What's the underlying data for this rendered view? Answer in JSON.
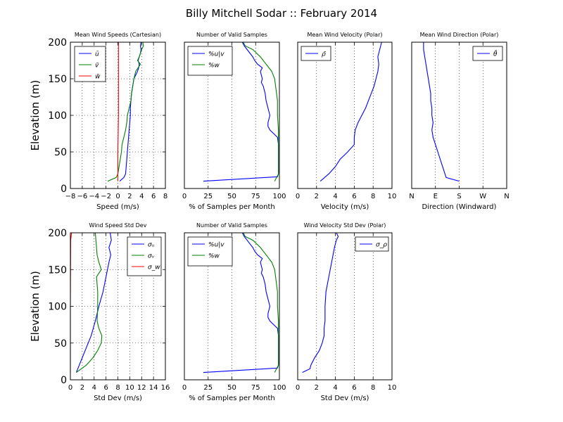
{
  "figure": {
    "title": "Billy Mitchell Sodar :: February 2014"
  },
  "chart_data": [
    {
      "type": "line",
      "title": "Mean Wind Speeds (Cartesian)",
      "xlabel": "Speed (m/s)",
      "ylabel": "Elevation (m)",
      "xlim": [
        -8,
        8
      ],
      "ylim": [
        0,
        200
      ],
      "xticks": [
        -8,
        -6,
        -4,
        -2,
        0,
        2,
        4,
        6,
        8
      ],
      "xtick_labels": [
        "−8",
        "−6",
        "−4",
        "−2",
        "0",
        "2",
        "4",
        "6",
        "8"
      ],
      "yticks": [
        0,
        50,
        100,
        150,
        200
      ],
      "grid": true,
      "legend_position": "top-left",
      "series": [
        {
          "name": "ū",
          "color": "#0000ff",
          "points": [
            [
              0.3,
              10
            ],
            [
              1.0,
              15
            ],
            [
              1.3,
              20
            ],
            [
              1.4,
              30
            ],
            [
              1.5,
              40
            ],
            [
              1.6,
              50
            ],
            [
              1.7,
              60
            ],
            [
              1.8,
              70
            ],
            [
              1.9,
              80
            ],
            [
              2.0,
              90
            ],
            [
              2.1,
              100
            ],
            [
              2.1,
              110
            ],
            [
              2.2,
              120
            ],
            [
              2.3,
              130
            ],
            [
              2.5,
              140
            ],
            [
              2.7,
              150
            ],
            [
              3.0,
              155
            ],
            [
              3.3,
              160
            ],
            [
              3.5,
              165
            ],
            [
              3.6,
              170
            ],
            [
              3.4,
              175
            ],
            [
              3.6,
              180
            ],
            [
              3.8,
              185
            ],
            [
              3.9,
              190
            ],
            [
              3.8,
              195
            ],
            [
              3.9,
              200
            ]
          ]
        },
        {
          "name": "v̄",
          "color": "#008000",
          "points": [
            [
              -1.7,
              10
            ],
            [
              -0.3,
              15
            ],
            [
              0.0,
              20
            ],
            [
              0.2,
              30
            ],
            [
              0.4,
              40
            ],
            [
              0.6,
              50
            ],
            [
              0.7,
              60
            ],
            [
              1.0,
              70
            ],
            [
              1.3,
              80
            ],
            [
              1.5,
              90
            ],
            [
              1.6,
              100
            ],
            [
              1.9,
              110
            ],
            [
              2.2,
              120
            ],
            [
              2.3,
              130
            ],
            [
              2.5,
              140
            ],
            [
              2.7,
              150
            ],
            [
              3.0,
              160
            ],
            [
              3.4,
              165
            ],
            [
              3.8,
              170
            ],
            [
              3.3,
              175
            ],
            [
              3.6,
              180
            ],
            [
              3.8,
              185
            ],
            [
              4.0,
              190
            ],
            [
              4.3,
              195
            ],
            [
              4.2,
              200
            ]
          ]
        },
        {
          "name": "w̄",
          "color": "#ff0000",
          "points": [
            [
              0.0,
              10
            ],
            [
              0.0,
              50
            ],
            [
              0.1,
              100
            ],
            [
              0.1,
              150
            ],
            [
              0.1,
              200
            ]
          ]
        }
      ]
    },
    {
      "type": "line",
      "title": "Number of Valid Samples",
      "xlabel": "% of Samples per Month",
      "ylabel": "",
      "xlim": [
        0,
        100
      ],
      "ylim": [
        0,
        200
      ],
      "xticks": [
        0,
        25,
        50,
        75,
        100
      ],
      "yticks": [],
      "grid": true,
      "legend_position": "top-left",
      "series": [
        {
          "name": "%u|v",
          "color": "#0000ff",
          "points": [
            [
              20,
              10
            ],
            [
              98,
              16
            ],
            [
              99,
              20
            ],
            [
              99,
              30
            ],
            [
              99,
              40
            ],
            [
              99,
              50
            ],
            [
              99,
              60
            ],
            [
              98,
              70
            ],
            [
              90,
              80
            ],
            [
              88,
              85
            ],
            [
              88,
              90
            ],
            [
              90,
              100
            ],
            [
              88,
              110
            ],
            [
              86,
              120
            ],
            [
              85,
              130
            ],
            [
              83,
              140
            ],
            [
              81,
              145
            ],
            [
              82,
              150
            ],
            [
              80,
              160
            ],
            [
              82,
              165
            ],
            [
              77,
              170
            ],
            [
              74,
              175
            ],
            [
              72,
              180
            ],
            [
              69,
              185
            ],
            [
              66,
              190
            ],
            [
              63,
              195
            ],
            [
              61,
              200
            ]
          ]
        },
        {
          "name": "%w",
          "color": "#008000",
          "points": [
            [
              95,
              10
            ],
            [
              99,
              20
            ],
            [
              99,
              50
            ],
            [
              99,
              80
            ],
            [
              98,
              100
            ],
            [
              98,
              120
            ],
            [
              96,
              140
            ],
            [
              95,
              150
            ],
            [
              92,
              160
            ],
            [
              86,
              170
            ],
            [
              80,
              180
            ],
            [
              72,
              190
            ],
            [
              64,
              195
            ],
            [
              62,
              200
            ]
          ]
        }
      ]
    },
    {
      "type": "line",
      "title": "Mean Wind Velocity (Polar)",
      "xlabel": "Velocity (m/s)",
      "ylabel": "",
      "xlim": [
        0,
        10
      ],
      "ylim": [
        0,
        200
      ],
      "xticks": [
        0,
        2,
        4,
        6,
        8,
        10
      ],
      "yticks": [],
      "grid": true,
      "legend_position": "top-left",
      "series": [
        {
          "name": "ρ̄",
          "color": "#0000ff",
          "points": [
            [
              2.4,
              10
            ],
            [
              3.3,
              20
            ],
            [
              4.0,
              30
            ],
            [
              4.5,
              40
            ],
            [
              5.3,
              50
            ],
            [
              6.0,
              60
            ],
            [
              6.0,
              70
            ],
            [
              6.1,
              80
            ],
            [
              6.4,
              90
            ],
            [
              6.8,
              100
            ],
            [
              7.2,
              110
            ],
            [
              7.5,
              120
            ],
            [
              7.8,
              130
            ],
            [
              8.1,
              140
            ],
            [
              8.3,
              150
            ],
            [
              8.5,
              160
            ],
            [
              8.6,
              170
            ],
            [
              8.5,
              180
            ],
            [
              8.7,
              190
            ],
            [
              8.9,
              200
            ]
          ]
        }
      ]
    },
    {
      "type": "line",
      "title": "Mean Wind Direction (Polar)",
      "xlabel": "Direction (Windward)",
      "ylabel": "",
      "xlim": [
        0,
        4
      ],
      "ylim": [
        0,
        200
      ],
      "xticks": [
        0,
        1,
        2,
        3,
        4
      ],
      "xtick_labels": [
        "N",
        "E",
        "S",
        "W",
        "N"
      ],
      "yticks": [],
      "grid": true,
      "legend_position": "top-right",
      "series": [
        {
          "name": "θ̄",
          "color": "#0000ff",
          "points": [
            [
              2.0,
              10
            ],
            [
              1.45,
              15
            ],
            [
              1.3,
              30
            ],
            [
              1.1,
              50
            ],
            [
              0.9,
              70
            ],
            [
              0.85,
              80
            ],
            [
              0.9,
              90
            ],
            [
              0.85,
              100
            ],
            [
              0.85,
              110
            ],
            [
              0.8,
              120
            ],
            [
              0.8,
              130
            ],
            [
              0.75,
              140
            ],
            [
              0.7,
              150
            ],
            [
              0.65,
              160
            ],
            [
              0.6,
              170
            ],
            [
              0.55,
              180
            ],
            [
              0.5,
              190
            ],
            [
              0.5,
              200
            ]
          ]
        }
      ]
    },
    {
      "type": "line",
      "title": "Wind Speed Std Dev",
      "xlabel": "Std Dev (m/s)",
      "ylabel": "Elevation (m)",
      "xlim": [
        0,
        16
      ],
      "ylim": [
        0,
        200
      ],
      "xticks": [
        0,
        2,
        4,
        6,
        8,
        10,
        12,
        14,
        16
      ],
      "yticks": [
        0,
        50,
        100,
        150,
        200
      ],
      "grid": true,
      "legend_position": "top-right",
      "series": [
        {
          "name": "σᵤ",
          "color": "#0000ff",
          "points": [
            [
              1.0,
              10
            ],
            [
              1.5,
              20
            ],
            [
              2.5,
              40
            ],
            [
              3.5,
              60
            ],
            [
              4.2,
              80
            ],
            [
              4.8,
              100
            ],
            [
              5.5,
              120
            ],
            [
              6.0,
              140
            ],
            [
              6.5,
              160
            ],
            [
              6.8,
              170
            ],
            [
              6.5,
              180
            ],
            [
              6.9,
              190
            ],
            [
              6.7,
              200
            ]
          ]
        },
        {
          "name": "σᵥ",
          "color": "#008000",
          "points": [
            [
              1.0,
              10
            ],
            [
              2.7,
              20
            ],
            [
              3.8,
              30
            ],
            [
              4.6,
              40
            ],
            [
              5.2,
              50
            ],
            [
              5.3,
              60
            ],
            [
              4.8,
              70
            ],
            [
              4.5,
              80
            ],
            [
              4.6,
              100
            ],
            [
              4.6,
              120
            ],
            [
              4.4,
              140
            ],
            [
              5.2,
              150
            ],
            [
              4.8,
              160
            ],
            [
              4.5,
              170
            ],
            [
              4.4,
              180
            ],
            [
              4.3,
              190
            ],
            [
              4.2,
              200
            ]
          ]
        },
        {
          "name": "σ_w",
          "color": "#ff0000",
          "points": [
            [
              0.0,
              10
            ],
            [
              0.0,
              100
            ],
            [
              0.05,
              190
            ],
            [
              0.2,
              200
            ]
          ]
        }
      ]
    },
    {
      "type": "line",
      "title": "Number of Valid Samples",
      "xlabel": "% of Samples per Month",
      "ylabel": "",
      "xlim": [
        0,
        100
      ],
      "ylim": [
        0,
        200
      ],
      "xticks": [
        0,
        25,
        50,
        75,
        100
      ],
      "yticks": [],
      "grid": true,
      "legend_position": "top-left",
      "series": [
        {
          "name": "%u|v",
          "color": "#0000ff",
          "points": [
            [
              20,
              10
            ],
            [
              98,
              16
            ],
            [
              99,
              20
            ],
            [
              99,
              30
            ],
            [
              99,
              40
            ],
            [
              99,
              50
            ],
            [
              99,
              60
            ],
            [
              98,
              70
            ],
            [
              90,
              80
            ],
            [
              88,
              85
            ],
            [
              88,
              90
            ],
            [
              90,
              100
            ],
            [
              88,
              110
            ],
            [
              86,
              120
            ],
            [
              85,
              130
            ],
            [
              83,
              140
            ],
            [
              81,
              145
            ],
            [
              82,
              150
            ],
            [
              80,
              160
            ],
            [
              82,
              165
            ],
            [
              77,
              170
            ],
            [
              74,
              175
            ],
            [
              72,
              180
            ],
            [
              69,
              185
            ],
            [
              66,
              190
            ],
            [
              63,
              195
            ],
            [
              61,
              200
            ]
          ]
        },
        {
          "name": "%w",
          "color": "#008000",
          "points": [
            [
              95,
              10
            ],
            [
              99,
              20
            ],
            [
              99,
              50
            ],
            [
              99,
              80
            ],
            [
              98,
              100
            ],
            [
              98,
              120
            ],
            [
              96,
              140
            ],
            [
              95,
              150
            ],
            [
              92,
              160
            ],
            [
              86,
              170
            ],
            [
              80,
              180
            ],
            [
              72,
              190
            ],
            [
              64,
              195
            ],
            [
              62,
              200
            ]
          ]
        }
      ]
    },
    {
      "type": "line",
      "title": "Wind Velocity Std Dev (Polar)",
      "xlabel": "Std Dev (m/s)",
      "ylabel": "",
      "xlim": [
        0,
        10
      ],
      "ylim": [
        0,
        200
      ],
      "xticks": [
        0,
        2,
        4,
        6,
        8,
        10
      ],
      "yticks": [],
      "grid": true,
      "legend_position": "top-right",
      "series": [
        {
          "name": "σ_ρ",
          "color": "#0000ff",
          "points": [
            [
              0.5,
              10
            ],
            [
              1.3,
              15
            ],
            [
              1.4,
              20
            ],
            [
              1.8,
              30
            ],
            [
              2.3,
              40
            ],
            [
              2.6,
              50
            ],
            [
              2.8,
              60
            ],
            [
              2.8,
              70
            ],
            [
              2.9,
              80
            ],
            [
              2.9,
              100
            ],
            [
              3.0,
              120
            ],
            [
              3.3,
              140
            ],
            [
              3.6,
              160
            ],
            [
              3.9,
              180
            ],
            [
              4.1,
              190
            ],
            [
              4.3,
              195
            ],
            [
              4.1,
              200
            ]
          ]
        }
      ]
    }
  ]
}
